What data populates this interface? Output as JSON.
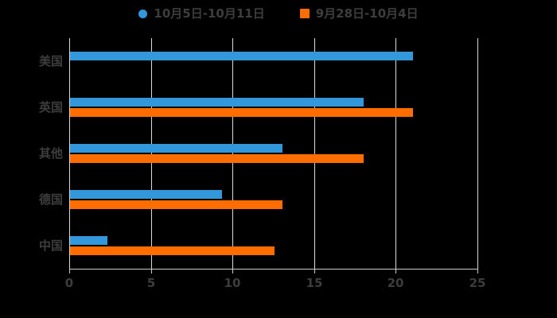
{
  "colors": {
    "background": "#000000",
    "series1": "#3398DB",
    "series2": "#FF6D00",
    "gridline": "#D9D9D9",
    "axis": "#C9C9C9",
    "text": "#3D3D3D"
  },
  "legend": {
    "items": [
      {
        "label": "10月5日-10月11日",
        "color": "#3398DB",
        "shape": "circle"
      },
      {
        "label": "9月28日-10月4日",
        "color": "#FF6D00",
        "shape": "square"
      }
    ]
  },
  "chart_data": {
    "type": "bar",
    "orientation": "horizontal",
    "title": "",
    "xlabel": "",
    "ylabel": "",
    "categories": [
      "美国",
      "英国",
      "其他",
      "德国",
      "中国"
    ],
    "series": [
      {
        "name": "10月5日-10月11日",
        "color": "#3398DB",
        "values": [
          21,
          18,
          13,
          9.3,
          2.3
        ]
      },
      {
        "name": "9月28日-10月4日",
        "color": "#FF6D00",
        "values": [
          0,
          21,
          18,
          13,
          12.5
        ]
      }
    ],
    "xlim": [
      0,
      25
    ],
    "xticks": [
      0,
      5,
      10,
      15,
      20,
      25
    ],
    "grid": true,
    "legend_position": "top"
  }
}
